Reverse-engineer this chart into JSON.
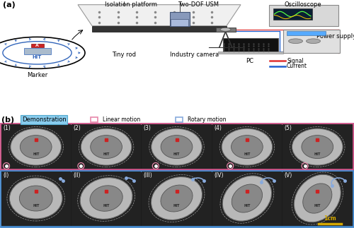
{
  "fig_width": 5.0,
  "fig_height": 3.23,
  "dpi": 100,
  "bg_color": "#ffffff",
  "panel_a_label": "(a)",
  "panel_b_label": "(b)",
  "annotations": [
    "Isolation platform",
    "Two-DOF USM",
    "Oscilloscope",
    "Power supply",
    "Marker",
    "Tiny rod",
    "Industry camera",
    "PC",
    "Signal",
    "Current"
  ],
  "signal_color": "#e03030",
  "current_color": "#2060d0",
  "demo_label": "Demonstration",
  "demo_label_bg": "#88ccee",
  "demo_label_border": "#55aacc",
  "linear_label": "Linear motion",
  "linear_box_color": "#e888aa",
  "rotary_label": "Rotary motion",
  "rotary_box_color": "#88aadd",
  "linear_border_color": "#cc5588",
  "rotary_border_color": "#4488cc",
  "scale_bar_text": "1cm",
  "scale_bar_color": "#d4a800",
  "linear_labels": [
    "(1)",
    "(2)",
    "(3)",
    "(4)",
    "(5)"
  ],
  "rotary_labels": [
    "(I)",
    "(II)",
    "(III)",
    "(IV)",
    "(V)"
  ],
  "marker_blue": "#3366bb",
  "marker_red": "#cc2222"
}
